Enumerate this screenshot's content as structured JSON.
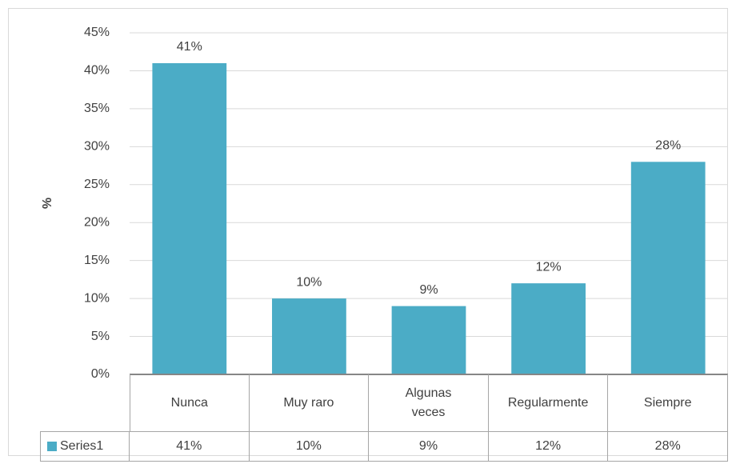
{
  "chart_data": {
    "type": "bar",
    "categories": [
      "Nunca",
      "Muy raro",
      "Algunas veces",
      "Regularmente",
      "Siempre"
    ],
    "series": [
      {
        "name": "Series1",
        "color": "#4bacc6",
        "values": [
          41,
          10,
          9,
          12,
          28
        ],
        "value_labels": [
          "41%",
          "10%",
          "9%",
          "12%",
          "28%"
        ]
      }
    ],
    "y_label": "%",
    "ylim": [
      0,
      45
    ],
    "yticks": [
      {
        "value": 0,
        "label": "0%"
      },
      {
        "value": 5,
        "label": "5%"
      },
      {
        "value": 10,
        "label": "10%"
      },
      {
        "value": 15,
        "label": "15%"
      },
      {
        "value": 20,
        "label": "20%"
      },
      {
        "value": 25,
        "label": "25%"
      },
      {
        "value": 30,
        "label": "30%"
      },
      {
        "value": 35,
        "label": "35%"
      },
      {
        "value": 40,
        "label": "40%"
      },
      {
        "value": 45,
        "label": "45%"
      }
    ],
    "grid": true
  }
}
